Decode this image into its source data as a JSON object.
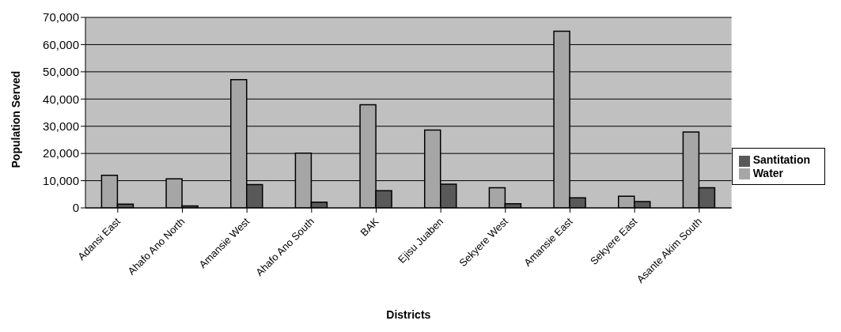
{
  "chart_data": {
    "type": "bar",
    "xlabel": "Districts",
    "ylabel": "Population Served",
    "categories": [
      "Adansi East",
      "Ahafo Ano North",
      "Amansie West",
      "Ahafo Ano South",
      "BAK",
      "Ejisu Juaben",
      "Sekyere West",
      "Amansie East",
      "Sekyere East",
      "Asante Akim South"
    ],
    "series": [
      {
        "name": "Water",
        "color": "#a6a6a6",
        "values": [
          12000,
          10700,
          47100,
          20100,
          37900,
          28600,
          7400,
          64900,
          4300,
          27900
        ]
      },
      {
        "name": "Santitation",
        "color": "#595959",
        "values": [
          1400,
          700,
          8600,
          2100,
          6300,
          8700,
          1500,
          3700,
          2300,
          7400
        ]
      }
    ],
    "ylim": [
      0,
      70000
    ],
    "yticks": [
      {
        "value": 0,
        "label": "0"
      },
      {
        "value": 10000,
        "label": "10,000"
      },
      {
        "value": 20000,
        "label": "20,000"
      },
      {
        "value": 30000,
        "label": "30,000"
      },
      {
        "value": 40000,
        "label": "40,000"
      },
      {
        "value": 50000,
        "label": "50,000"
      },
      {
        "value": 60000,
        "label": "60,000"
      },
      {
        "value": 70000,
        "label": "70,000"
      }
    ],
    "grid": "y",
    "legend": "right"
  }
}
